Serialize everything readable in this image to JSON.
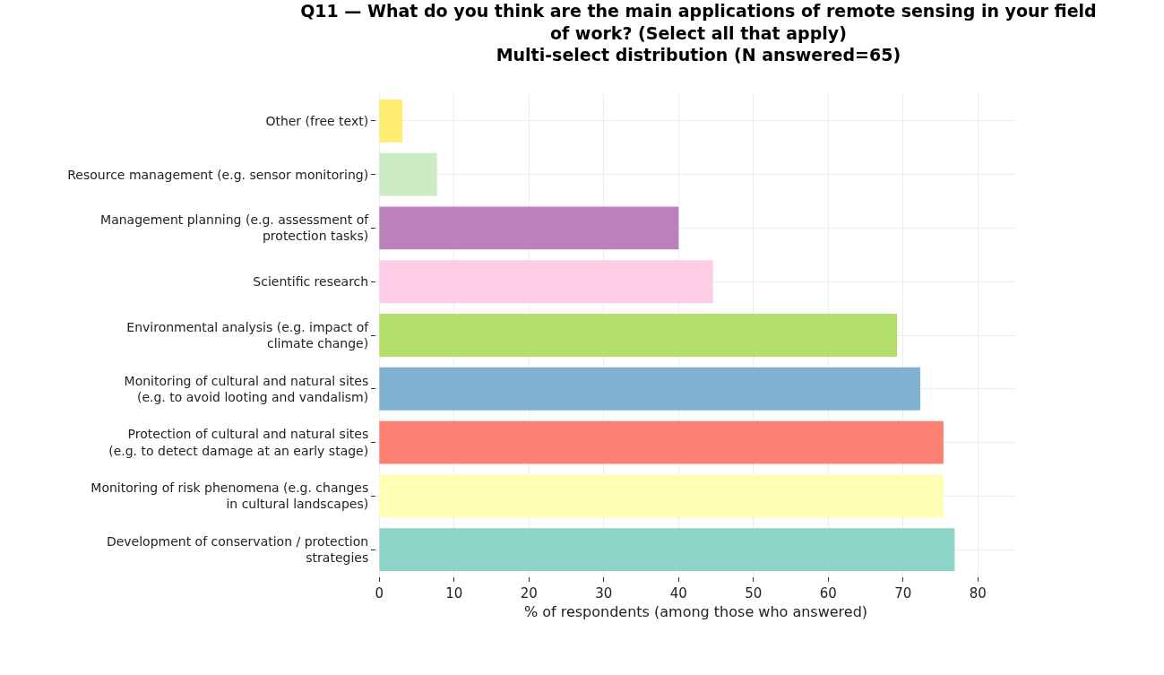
{
  "chart_data": {
    "type": "bar",
    "orientation": "horizontal",
    "title": "Q11 — What do you think are the main applications of remote sensing in your field of work? (Select all that apply)",
    "subtitle": "Multi-select distribution (N answered=65)",
    "xlabel": "% of respondents (among those who answered)",
    "categories": [
      "Other (free text)",
      "Resource management (e.g. sensor monitoring)",
      "Management planning (e.g. assessment of protection tasks)",
      "Scientific research",
      "Environmental analysis (e.g. impact of climate change)",
      "Monitoring of cultural and natural sites (e.g. to avoid looting and vandalism)",
      "Protection of cultural and natural sites (e.g. to detect damage at an early stage)",
      "Monitoring of risk phenomena (e.g. changes in cultural landscapes)",
      "Development of conservation / protection strategies"
    ],
    "values": [
      3.1,
      7.7,
      40.0,
      44.6,
      69.2,
      72.3,
      75.4,
      75.4,
      76.9
    ],
    "colors": [
      "#ffed6f",
      "#ccebc5",
      "#bc80bd",
      "#fccde5",
      "#b3de69",
      "#80b1d3",
      "#fb8072",
      "#ffffb3",
      "#8dd3c7"
    ],
    "xlim": [
      -0.4,
      85
    ],
    "xticks": [
      0,
      10,
      20,
      30,
      40,
      50,
      60,
      70,
      80
    ],
    "grid": true
  }
}
